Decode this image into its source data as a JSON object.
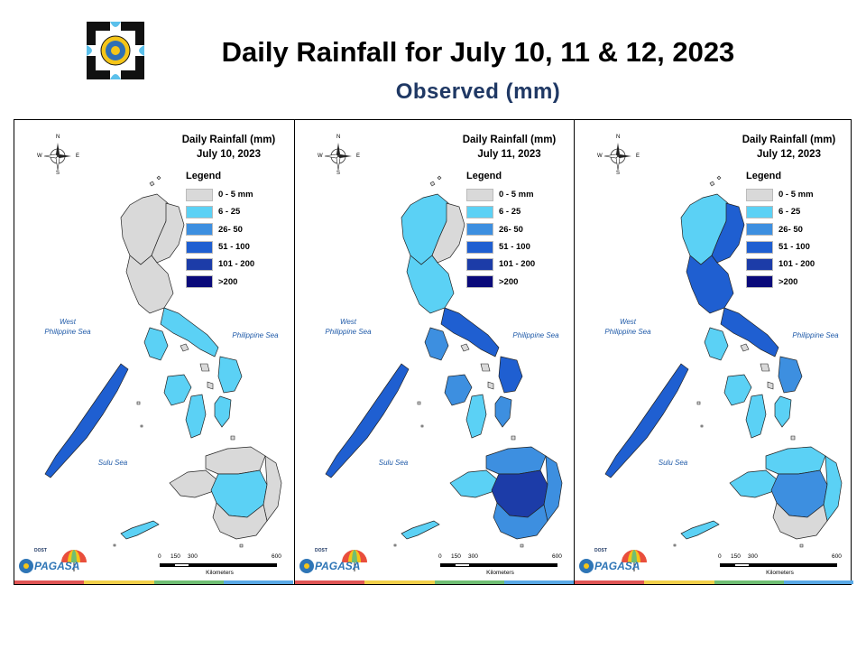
{
  "header": {
    "title": "Daily Rainfall for July 10, 11 & 12, 2023",
    "subtitle": "Observed (mm)"
  },
  "legend": {
    "title": "Legend",
    "items": [
      {
        "label": "0 - 5 mm",
        "color": "#d9d9d9"
      },
      {
        "label": "6 - 25",
        "color": "#5bd1f5"
      },
      {
        "label": "26- 50",
        "color": "#3d8fe0"
      },
      {
        "label": "51 - 100",
        "color": "#1f5fd1"
      },
      {
        "label": "101 - 200",
        "color": "#1c3ca8"
      },
      {
        "label": ">200",
        "color": "#0a0a7a"
      }
    ]
  },
  "seas": {
    "west": "West\nPhilippine Sea",
    "philippine": "Philippine Sea",
    "sulu": "Sulu Sea"
  },
  "compass": {
    "n": "N",
    "s": "S",
    "e": "E",
    "w": "W"
  },
  "scale": {
    "ticks": [
      "0",
      "150",
      "300",
      "600"
    ],
    "unit": "Kilometers"
  },
  "branding": {
    "agency": "PAGASA",
    "org": "DOST"
  },
  "strip_colors": [
    "#e05555",
    "#f2d04a",
    "#6fbf73",
    "#5aa9e6"
  ],
  "panels": [
    {
      "title": "Daily Rainfall (mm)",
      "date": "July 10, 2023",
      "regions": {
        "luzon_north": 0,
        "luzon_central": 0,
        "cagayan": 0,
        "bicol": 1,
        "mindoro": 1,
        "palawan": 3,
        "panay": 1,
        "negros": 1,
        "samar": 1,
        "leyte": 1,
        "mindanao_west": 0,
        "mindanao_north": 0,
        "mindanao_central": 1,
        "mindanao_east": 0,
        "mindanao_south": 0,
        "sulu": 1
      }
    },
    {
      "title": "Daily Rainfall (mm)",
      "date": "July 11, 2023",
      "regions": {
        "luzon_north": 1,
        "luzon_central": 1,
        "cagayan": 0,
        "bicol": 3,
        "mindoro": 2,
        "palawan": 3,
        "panay": 2,
        "negros": 1,
        "samar": 3,
        "leyte": 2,
        "mindanao_west": 1,
        "mindanao_north": 2,
        "mindanao_central": 4,
        "mindanao_east": 2,
        "mindanao_south": 2,
        "sulu": 1
      }
    },
    {
      "title": "Daily Rainfall (mm)",
      "date": "July 12, 2023",
      "regions": {
        "luzon_north": 1,
        "luzon_central": 3,
        "cagayan": 3,
        "bicol": 3,
        "mindoro": 1,
        "palawan": 3,
        "panay": 1,
        "negros": 1,
        "samar": 2,
        "leyte": 1,
        "mindanao_west": 1,
        "mindanao_north": 1,
        "mindanao_central": 2,
        "mindanao_east": 1,
        "mindanao_south": 0,
        "sulu": 1
      }
    }
  ]
}
